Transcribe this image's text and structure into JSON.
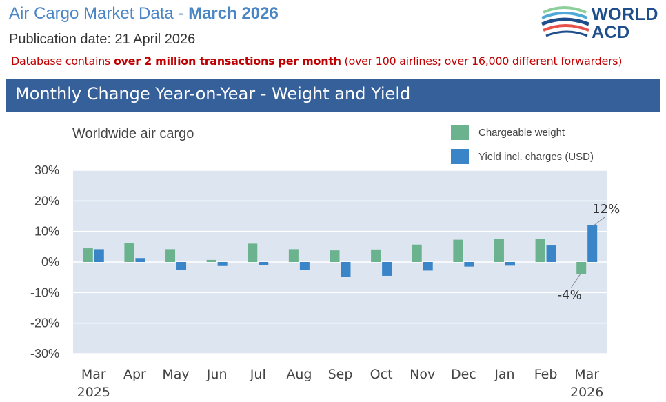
{
  "header": {
    "title_prefix": "Air Cargo Market Data - ",
    "title_month": "March 2026",
    "publication": "Publication date: 21 April 2026",
    "db_prefix": "Database contains ",
    "db_bold": "over 2 million transactions per month",
    "db_suffix": "  (over 100 airlines; over 16,000 different forwarders)"
  },
  "logo": {
    "line1": "WORLD",
    "line2": "ACD"
  },
  "banner": {
    "title": "Monthly Change Year-on-Year - Weight and Yield"
  },
  "colors": {
    "weight": "#6bb38e",
    "yield": "#3a85c8",
    "plot_bg": "#dce5f0",
    "grid": "#ffffff"
  },
  "chart_data": {
    "type": "bar",
    "title": "Worldwide air cargo",
    "categories": [
      "Mar",
      "Apr",
      "May",
      "Jun",
      "Jul",
      "Aug",
      "Sep",
      "Oct",
      "Nov",
      "Dec",
      "Jan",
      "Feb",
      "Mar"
    ],
    "category_years": [
      "2025",
      "",
      "",
      "",
      "",
      "",
      "",
      "",
      "",
      "",
      "",
      "",
      "2026"
    ],
    "series": [
      {
        "name": "Chargeable weight",
        "values": [
          4.5,
          6.3,
          4.2,
          0.7,
          6.0,
          4.2,
          3.8,
          4.1,
          5.7,
          7.3,
          7.5,
          7.6,
          -4
        ]
      },
      {
        "name": "Yield incl. charges (USD)",
        "values": [
          4.2,
          1.3,
          -2.5,
          -1.3,
          -1.0,
          -2.5,
          -4.9,
          -4.5,
          -2.8,
          -1.5,
          -1.2,
          5.4,
          12
        ]
      }
    ],
    "ylim": [
      -30,
      30
    ],
    "yticks": [
      30,
      20,
      10,
      0,
      -10,
      -20,
      -30
    ],
    "ytick_labels": [
      "30%",
      "20%",
      "10%",
      "0%",
      "-10%",
      "-20%",
      "-30%"
    ],
    "annotations": [
      {
        "series": 1,
        "index": 12,
        "text": "12%"
      },
      {
        "series": 0,
        "index": 12,
        "text": "-4%"
      }
    ],
    "legend": "top-right"
  }
}
